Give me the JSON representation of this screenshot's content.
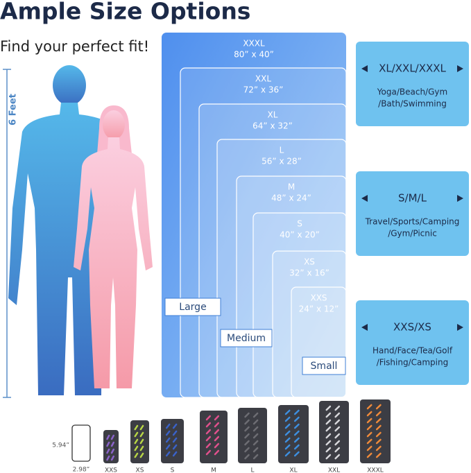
{
  "header": {
    "title": "Ample Size Options",
    "subtitle": "Find your perfect fit!"
  },
  "height_label": "6 Feet",
  "towels": [
    {
      "size": "XXXL",
      "dims": "80” x 40”"
    },
    {
      "size": "XXL",
      "dims": "72” x 36”"
    },
    {
      "size": "XL",
      "dims": "64” x 32”"
    },
    {
      "size": "L",
      "dims": "56” x 28”"
    },
    {
      "size": "M",
      "dims": "48” x 24”"
    },
    {
      "size": "S",
      "dims": "40” x 20”"
    },
    {
      "size": "XS",
      "dims": "32” x 16”"
    },
    {
      "size": "XXS",
      "dims": "24” x 12”"
    }
  ],
  "group_labels": [
    "Large",
    "Medium",
    "Small"
  ],
  "panels": [
    {
      "sizes": "XL/XXL/XXXL",
      "uses": [
        "Yoga/Beach/Gym",
        "/Bath/Swimming"
      ]
    },
    {
      "sizes": "S/M/L",
      "uses": [
        "Travel/Sports/Camping",
        "/Gym/Picnic"
      ]
    },
    {
      "sizes": "XXS/XS",
      "uses": [
        "Hand/Face/Tea/Golf",
        "/Fishing/Camping"
      ]
    }
  ],
  "pouches": {
    "phone_height": "5.94”",
    "phone_width": "2.98”",
    "sizes": [
      "XXS",
      "XS",
      "S",
      "M",
      "L",
      "XL",
      "XXL",
      "XXXL"
    ]
  }
}
